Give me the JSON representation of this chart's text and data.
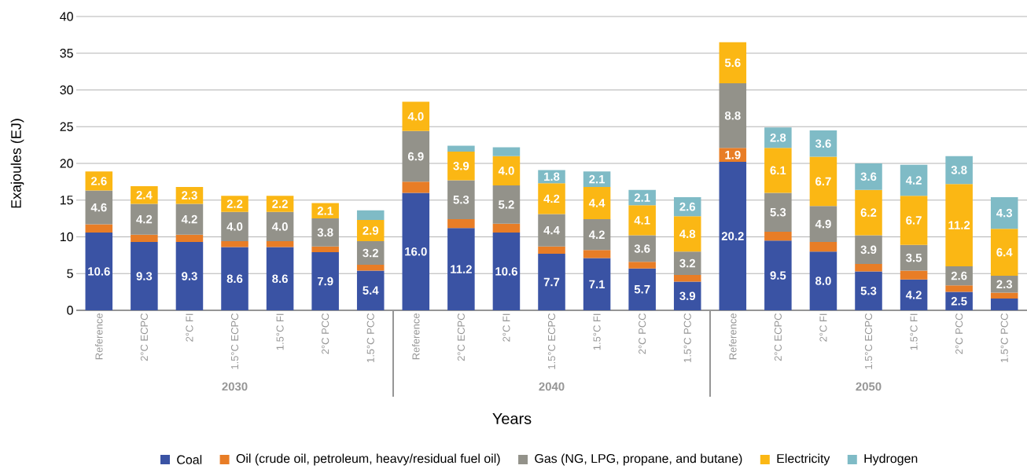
{
  "chart_data": {
    "type": "bar",
    "stacked": true,
    "xlabel": "Years",
    "ylabel": "Exajoules (EJ)",
    "categories": [
      "Reference",
      "2°C ECPC",
      "2°C FI",
      "1.5°C ECPC",
      "1.5°C FI",
      "2°C PCC",
      "1.5°C PCC",
      "Reference",
      "2°C ECPC",
      "2°C FI",
      "1.5°C ECPC",
      "1.5°C FI",
      "2°C PCC",
      "1.5°C PCC",
      "Reference",
      "2°C ECPC",
      "2°C FI",
      "1.5°C ECPC",
      "1.5°C FI",
      "2°C PCC",
      "1.5°C PCC"
    ],
    "annotations": [
      "2030",
      "2040",
      "2050"
    ],
    "ylim": [
      0,
      40
    ],
    "yticks": [
      0,
      5,
      10,
      15,
      20,
      25,
      30,
      35,
      40
    ],
    "grid": "y",
    "legend": "bottom",
    "series": [
      {
        "name": "Coal",
        "color": "#3a53a4",
        "values": [
          10.6,
          9.3,
          9.3,
          8.6,
          8.6,
          7.9,
          5.4,
          16.0,
          11.2,
          10.6,
          7.7,
          7.1,
          5.7,
          3.9,
          20.2,
          9.5,
          8.0,
          5.3,
          4.2,
          2.5,
          1.6
        ],
        "value_labels": [
          "10.6",
          "9.3",
          "9.3",
          "8.6",
          "8.6",
          "7.9",
          "5.4",
          "16.0",
          "11.2",
          "10.6",
          "7.7",
          "7.1",
          "5.7",
          "3.9",
          "20.2",
          "9.5",
          "8.0",
          "5.3",
          "4.2",
          "2.5",
          null
        ]
      },
      {
        "name": "Oil (crude oil, petroleum, heavy/residual fuel oil)",
        "color": "#e87d26",
        "values": [
          1.1,
          1.0,
          1.0,
          0.8,
          0.8,
          0.8,
          0.8,
          1.5,
          1.2,
          1.2,
          1.0,
          1.1,
          0.9,
          0.9,
          1.9,
          1.2,
          1.3,
          1.0,
          1.2,
          0.9,
          0.8
        ],
        "value_labels": [
          null,
          null,
          null,
          null,
          null,
          null,
          null,
          null,
          null,
          null,
          null,
          null,
          null,
          null,
          "1.9",
          null,
          null,
          null,
          null,
          null,
          null
        ]
      },
      {
        "name": "Gas (NG, LPG, propane, and butane)",
        "color": "#93928a",
        "values": [
          4.6,
          4.2,
          4.2,
          4.0,
          4.0,
          3.8,
          3.2,
          6.9,
          5.3,
          5.2,
          4.4,
          4.2,
          3.6,
          3.2,
          8.8,
          5.3,
          4.9,
          3.9,
          3.5,
          2.6,
          2.3
        ],
        "value_labels": [
          "4.6",
          "4.2",
          "4.2",
          "4.0",
          "4.0",
          "3.8",
          "3.2",
          "6.9",
          "5.3",
          "5.2",
          "4.4",
          "4.2",
          "3.6",
          "3.2",
          "8.8",
          "5.3",
          "4.9",
          "3.9",
          "3.5",
          "2.6",
          "2.3"
        ]
      },
      {
        "name": "Electricity",
        "color": "#fbb714",
        "values": [
          2.6,
          2.4,
          2.3,
          2.2,
          2.2,
          2.1,
          2.9,
          4.0,
          3.9,
          4.0,
          4.2,
          4.4,
          4.1,
          4.8,
          5.6,
          6.1,
          6.7,
          6.2,
          6.7,
          11.2,
          6.4
        ],
        "value_labels": [
          "2.6",
          "2.4",
          "2.3",
          "2.2",
          "2.2",
          "2.1",
          "2.9",
          "4.0",
          "3.9",
          "4.0",
          "4.2",
          "4.4",
          "4.1",
          "4.8",
          "5.6",
          "6.1",
          "6.7",
          "6.2",
          "6.7",
          "11.2",
          "6.4"
        ]
      },
      {
        "name": "Hydrogen",
        "color": "#7fbbc6",
        "values": [
          null,
          null,
          null,
          null,
          null,
          null,
          1.3,
          null,
          0.8,
          1.2,
          1.8,
          2.1,
          2.1,
          2.6,
          null,
          2.8,
          3.6,
          3.6,
          4.2,
          3.8,
          4.3
        ],
        "value_labels": [
          null,
          null,
          null,
          null,
          null,
          null,
          null,
          null,
          null,
          null,
          "1.8",
          "2.1",
          "2.1",
          "2.6",
          null,
          "2.8",
          "3.6",
          "3.6",
          "4.2",
          "3.8",
          "4.3"
        ]
      }
    ]
  }
}
